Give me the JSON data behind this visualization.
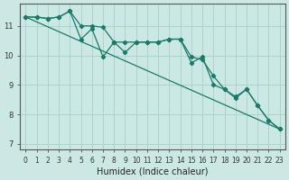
{
  "xlabel": "Humidex (Indice chaleur)",
  "background_color": "#cce8e4",
  "grid_color": "#aad4cc",
  "line_color": "#1a7a6a",
  "xlim": [
    -0.5,
    23.5
  ],
  "ylim": [
    6.8,
    11.75
  ],
  "yticks": [
    7,
    8,
    9,
    10,
    11
  ],
  "xticks": [
    0,
    1,
    2,
    3,
    4,
    5,
    6,
    7,
    8,
    9,
    10,
    11,
    12,
    13,
    14,
    15,
    16,
    17,
    18,
    19,
    20,
    21,
    22,
    23
  ],
  "series1_x": [
    0,
    1,
    2,
    3,
    4,
    5,
    6,
    7,
    8,
    9,
    10,
    11,
    12,
    13,
    14,
    15,
    16,
    17,
    18,
    19,
    20,
    21,
    22,
    23
  ],
  "series1_y": [
    11.3,
    11.3,
    11.25,
    11.3,
    11.5,
    10.55,
    10.9,
    9.95,
    10.45,
    10.1,
    10.45,
    10.45,
    10.45,
    10.55,
    10.55,
    9.75,
    9.95,
    9.0,
    8.85,
    8.6,
    8.85,
    8.3,
    7.8,
    7.5
  ],
  "series2_x": [
    0,
    1,
    2,
    3,
    4,
    5,
    6,
    7,
    8,
    9,
    10,
    11,
    12,
    13,
    14,
    15,
    16,
    17,
    18,
    19,
    20,
    21,
    22,
    23
  ],
  "series2_y": [
    11.3,
    11.3,
    11.25,
    11.3,
    11.5,
    11.0,
    11.0,
    10.95,
    10.45,
    10.45,
    10.45,
    10.45,
    10.45,
    10.55,
    10.55,
    9.95,
    9.85,
    9.3,
    8.85,
    8.55,
    8.85,
    8.3,
    7.8,
    7.5
  ],
  "series3_x": [
    0,
    23
  ],
  "series3_y": [
    11.3,
    7.5
  ]
}
